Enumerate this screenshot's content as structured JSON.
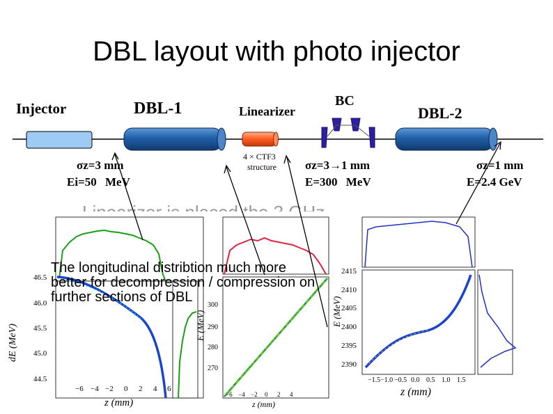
{
  "title": "DBL layout with photo injector",
  "layout": {
    "labels": {
      "injector": "Injector",
      "dbl1": "DBL-1",
      "linearizer": "Linearizer",
      "bc": "BC",
      "dbl2": "DBL-2",
      "cavity_note_line1": "4 × CTF3",
      "cavity_note_line2": "structure"
    },
    "params": {
      "p1_sigma": "σz=3 mm",
      "p1_energy": "Ei=50 MeV",
      "p2_sigma": "σz=3→1 mm",
      "p2_energy": "E=300 MeV",
      "p3_sigma": "σz=1 mm",
      "p3_energy": "E=2.4 GeV"
    },
    "colors": {
      "injector": "#9ecbf3",
      "dbl": "#1f5fa8",
      "linearizer": "#ff5a1f",
      "bc_magnet": "#2c1fa0"
    }
  },
  "obscured_text": "Linearizer is placed the 3 GHz",
  "note": "The longitudinal distribtion much more better for decompression / compression on further sections of DBL",
  "chart_data": [
    {
      "type": "scatter",
      "xlabel": "z (mm)",
      "ylabel": "dE (MeV)",
      "x_ticks": [
        "−6",
        "−4",
        "−2",
        "0",
        "2",
        "4",
        "6"
      ],
      "y_ticks": [
        "46.5",
        "46.0",
        "45.5",
        "45.0",
        "44.5"
      ]
    },
    {
      "type": "scatter",
      "xlabel": "z (mm)",
      "ylabel": "E (MeV)",
      "x_ticks": [
        "−6",
        "−4",
        "−2",
        "0",
        "2",
        "4"
      ],
      "y_ticks": [
        "300",
        "290",
        "280",
        "270"
      ]
    },
    {
      "type": "scatter",
      "xlabel": "z (mm)",
      "ylabel": "E (MeV)",
      "x_ticks": [
        "−1.5",
        "−1.0",
        "−0.5",
        "0.0",
        "0.5",
        "1.0",
        "1.5"
      ],
      "y_ticks": [
        "2415",
        "2410",
        "2405",
        "2400",
        "2395",
        "2390"
      ]
    }
  ]
}
